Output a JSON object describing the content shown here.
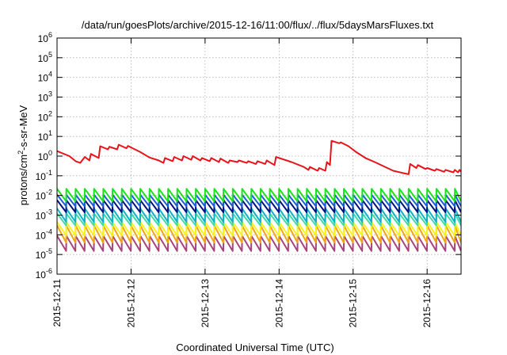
{
  "chart_data": {
    "type": "line",
    "title": "/data/run/goesPlots/archive/2015-12-16/11:00/flux/../flux/5daysMarsFluxes.txt",
    "xlabel": "Coordinated Universal Time (UTC)",
    "ylabel": "protons/cm²-s-sr-MeV",
    "ylabel_parts": {
      "pre": "protons/cm",
      "sup": "2",
      "post": "-s-sr-MeV"
    },
    "yscale": "log",
    "ylim": [
      1e-06,
      1000000.0
    ],
    "y_ticks": [
      {
        "value": 1e-06,
        "base": "10",
        "exp": "-6"
      },
      {
        "value": 1e-05,
        "base": "10",
        "exp": "-5"
      },
      {
        "value": 0.0001,
        "base": "10",
        "exp": "-4"
      },
      {
        "value": 0.001,
        "base": "10",
        "exp": "-3"
      },
      {
        "value": 0.01,
        "base": "10",
        "exp": "-2"
      },
      {
        "value": 0.1,
        "base": "10",
        "exp": "-1"
      },
      {
        "value": 1,
        "base": "10",
        "exp": "0"
      },
      {
        "value": 10,
        "base": "10",
        "exp": "1"
      },
      {
        "value": 100,
        "base": "10",
        "exp": "2"
      },
      {
        "value": 1000,
        "base": "10",
        "exp": "3"
      },
      {
        "value": 10000,
        "base": "10",
        "exp": "4"
      },
      {
        "value": 100000,
        "base": "10",
        "exp": "5"
      },
      {
        "value": 1000000,
        "base": "10",
        "exp": "6"
      }
    ],
    "xlim": [
      "2015-12-11",
      "2015-12-16 11:00"
    ],
    "x_ticks": [
      "2015-12-11",
      "2015-12-12",
      "2015-12-13",
      "2015-12-14",
      "2015-12-15",
      "2015-12-16"
    ],
    "grid": true,
    "series": [
      {
        "color": "#e8131b",
        "x": [
          "2015-12-11 00:00",
          "2015-12-11 04:00",
          "2015-12-11 06:00",
          "2015-12-11 07:30",
          "2015-12-11 09:00",
          "2015-12-11 10:30",
          "2015-12-11 11:00",
          "2015-12-11 13:30",
          "2015-12-11 14:00",
          "2015-12-11 16:30",
          "2015-12-11 17:00",
          "2015-12-11 19:30",
          "2015-12-11 20:00",
          "2015-12-11 22:30",
          "2015-12-11 23:00",
          "2015-12-12 03:00",
          "2015-12-12 06:00",
          "2015-12-12 09:00",
          "2015-12-12 10:30",
          "2015-12-12 11:00",
          "2015-12-12 13:30",
          "2015-12-12 14:00",
          "2015-12-12 16:30",
          "2015-12-12 17:00",
          "2015-12-12 19:30",
          "2015-12-12 20:00",
          "2015-12-12 22:30",
          "2015-12-12 23:00",
          "2015-12-13 01:30",
          "2015-12-13 02:00",
          "2015-12-13 04:30",
          "2015-12-13 05:00",
          "2015-12-13 07:30",
          "2015-12-13 08:00",
          "2015-12-13 10:30",
          "2015-12-13 11:00",
          "2015-12-13 13:30",
          "2015-12-13 14:00",
          "2015-12-13 16:30",
          "2015-12-13 17:00",
          "2015-12-13 19:30",
          "2015-12-13 20:00",
          "2015-12-13 22:30",
          "2015-12-13 23:00",
          "2015-12-14 04:00",
          "2015-12-14 08:00",
          "2015-12-14 09:30",
          "2015-12-14 10:00",
          "2015-12-14 12:30",
          "2015-12-14 13:00",
          "2015-12-14 15:00",
          "2015-12-14 15:30",
          "2015-12-14 16:30",
          "2015-12-14 17:00",
          "2015-12-14 19:30",
          "2015-12-14 20:00",
          "2015-12-14 22:30",
          "2015-12-15 01:00",
          "2015-12-15 04:00",
          "2015-12-15 07:00",
          "2015-12-15 10:00",
          "2015-12-15 13:00",
          "2015-12-15 16:00",
          "2015-12-15 18:00",
          "2015-12-15 18:30",
          "2015-12-15 20:30",
          "2015-12-15 21:00",
          "2015-12-15 23:30",
          "2015-12-16 00:00",
          "2015-12-16 02:30",
          "2015-12-16 03:00",
          "2015-12-16 05:30",
          "2015-12-16 06:00",
          "2015-12-16 08:30",
          "2015-12-16 09:00",
          "2015-12-16 10:00",
          "2015-12-16 10:30",
          "2015-12-16 11:00"
        ],
        "values": [
          1.8,
          1.0,
          0.55,
          0.45,
          0.9,
          0.6,
          1.3,
          0.8,
          3.2,
          2.2,
          3.0,
          2.2,
          3.8,
          2.5,
          3.3,
          1.6,
          0.85,
          0.6,
          0.45,
          0.8,
          0.55,
          0.9,
          0.6,
          1.0,
          0.65,
          1.0,
          0.6,
          0.8,
          0.55,
          0.8,
          0.5,
          0.75,
          0.45,
          0.6,
          0.5,
          0.6,
          0.45,
          0.55,
          0.4,
          0.55,
          0.4,
          0.6,
          0.35,
          0.9,
          0.5,
          0.28,
          0.2,
          0.28,
          0.18,
          0.25,
          0.18,
          0.5,
          0.35,
          6.0,
          4.5,
          5.0,
          3.2,
          1.6,
          0.8,
          0.5,
          0.3,
          0.18,
          0.14,
          0.12,
          0.4,
          0.25,
          0.35,
          0.22,
          0.25,
          0.18,
          0.22,
          0.16,
          0.2,
          0.15,
          0.2,
          0.15,
          0.2,
          0.16
        ]
      },
      {
        "color": "#19e31a",
        "sawtooth": true,
        "low": 0.005,
        "high": 0.022
      },
      {
        "color": "#1a5fd6",
        "sawtooth": true,
        "low": 0.0028,
        "high": 0.011
      },
      {
        "color": "#00127d",
        "sawtooth": true,
        "low": 0.0014,
        "high": 0.0058
      },
      {
        "color": "#0fb1c4",
        "sawtooth": true,
        "low": 0.00045,
        "high": 0.0022
      },
      {
        "color": "#45d9a6",
        "sawtooth": true,
        "low": 0.0003,
        "high": 0.0012
      },
      {
        "color": "#fbf21a",
        "sawtooth": true,
        "low": 9e-05,
        "high": 0.00045
      },
      {
        "color": "#f0a614",
        "sawtooth": true,
        "low": 4e-05,
        "high": 0.0003
      },
      {
        "color": "#a8447c",
        "sawtooth": true,
        "low": 1.5e-05,
        "high": 9e-05
      }
    ]
  }
}
